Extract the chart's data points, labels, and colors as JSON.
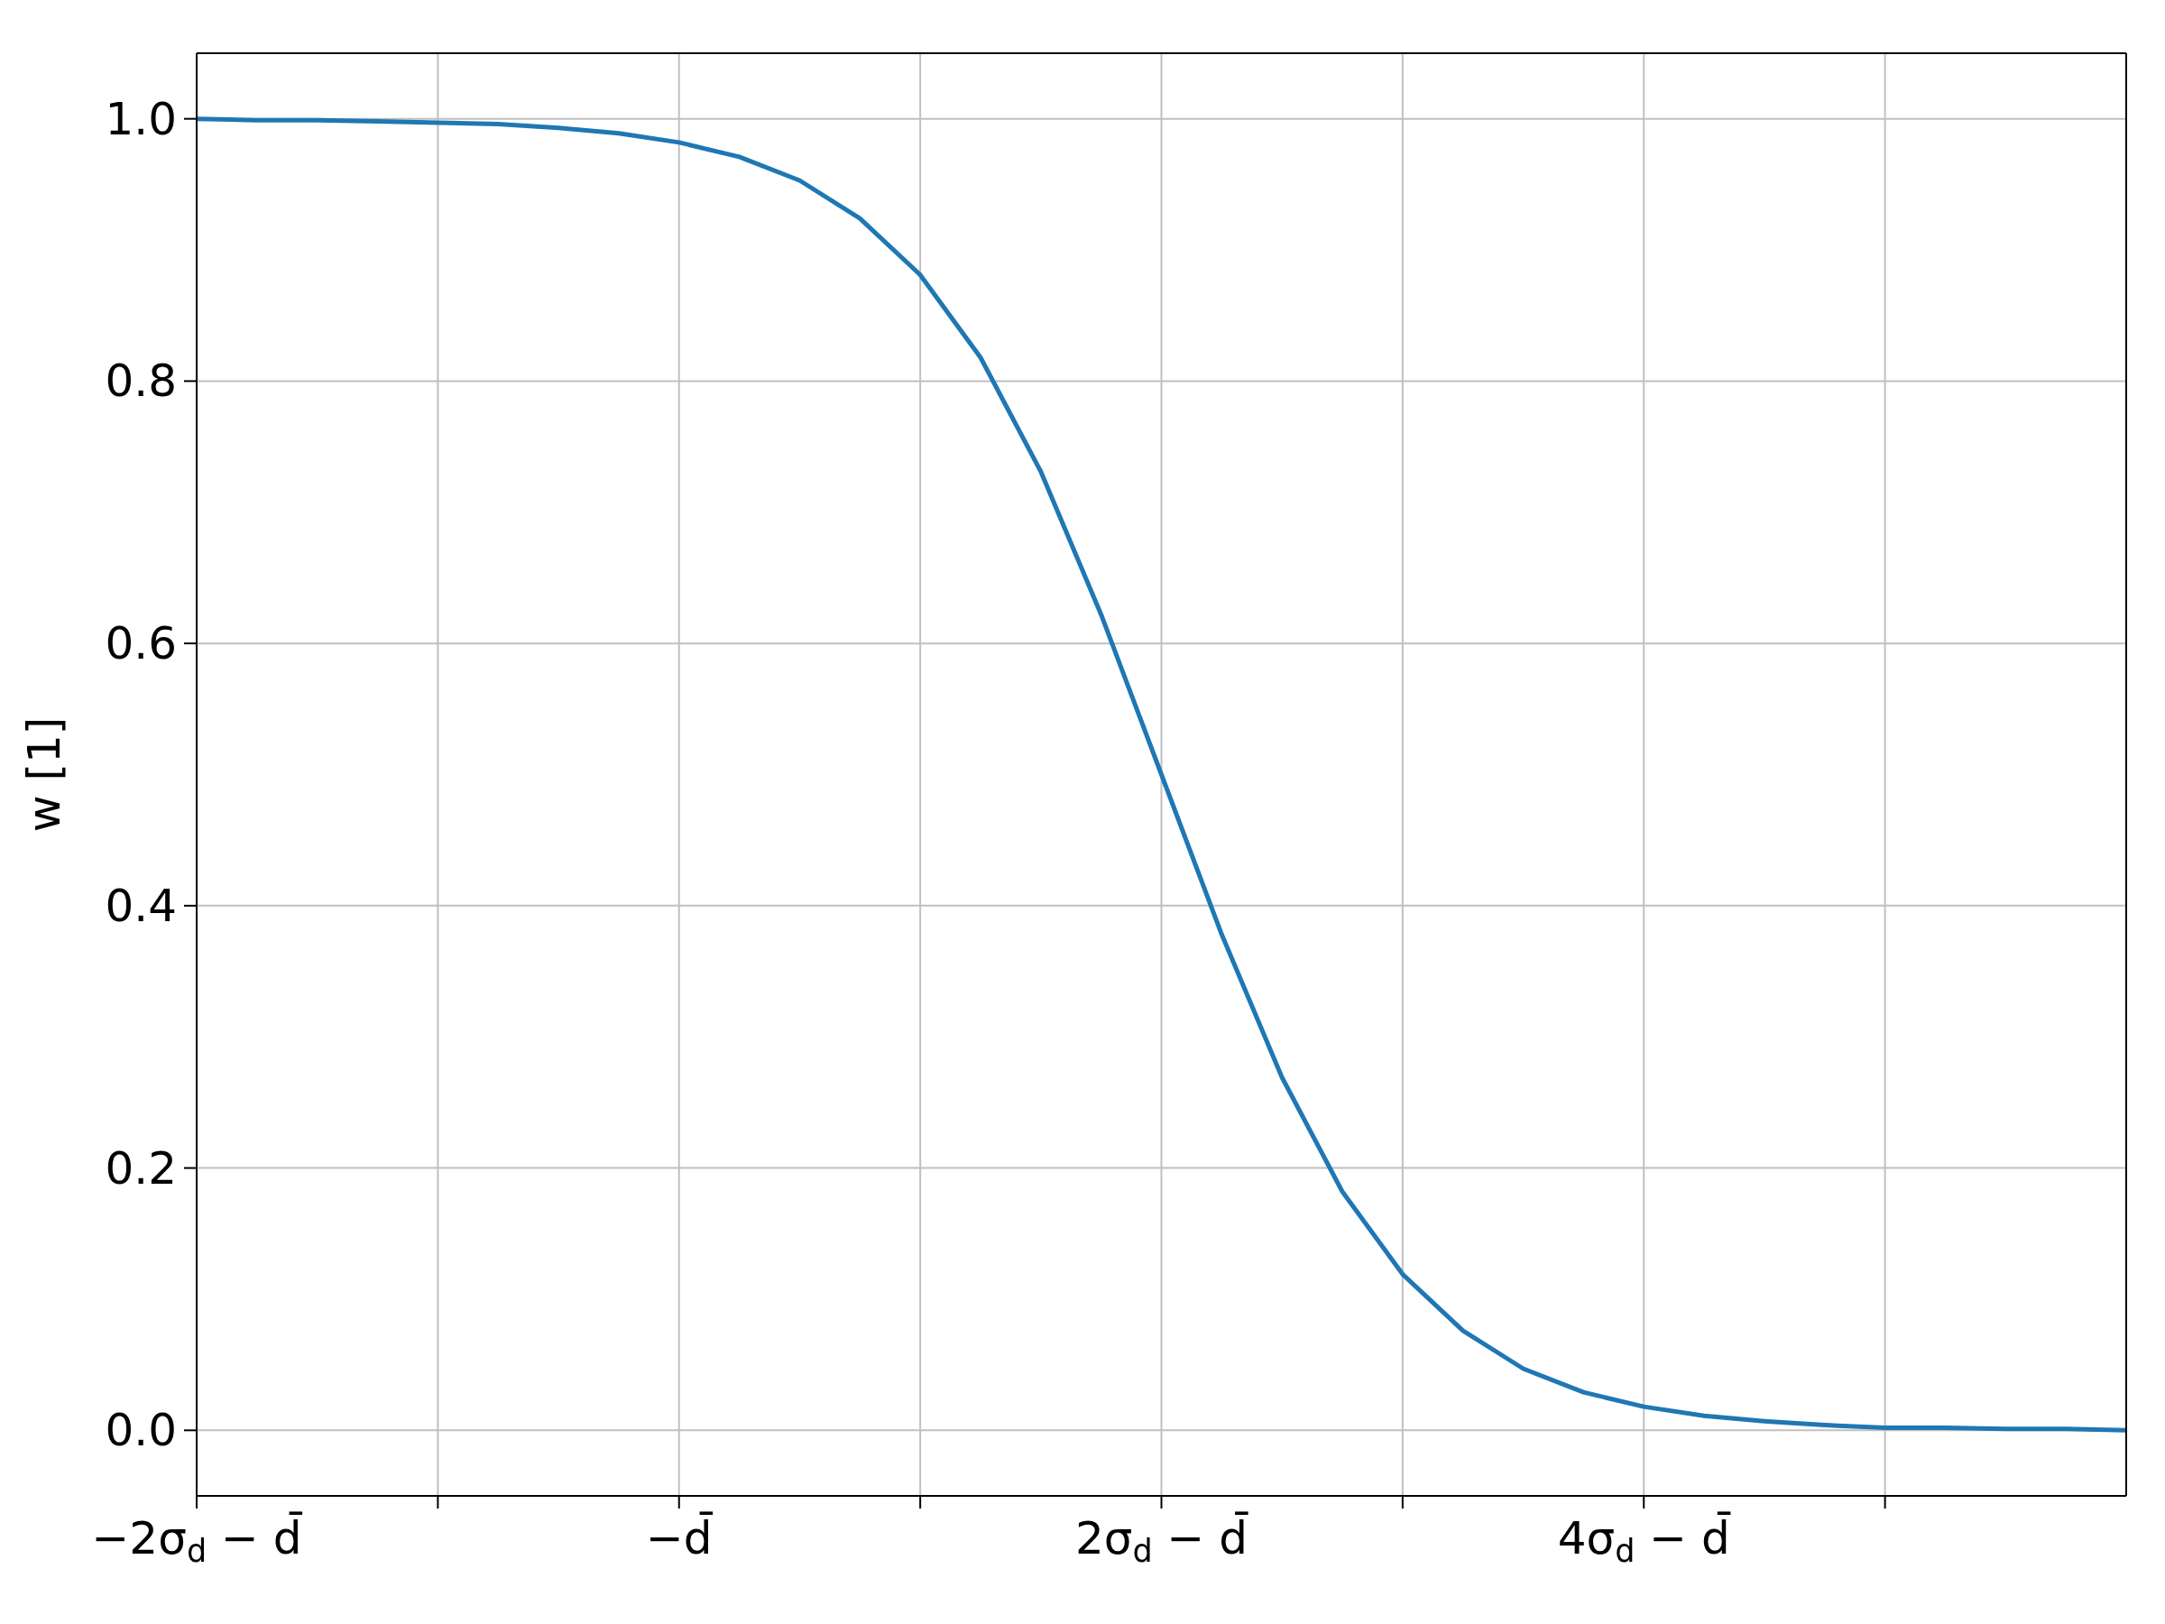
{
  "chart_data": {
    "type": "line",
    "ylabel": "w [1]",
    "x": [
      -2,
      -1.75,
      -1.5,
      -1.25,
      -1,
      -0.75,
      -0.5,
      -0.25,
      0,
      0.25,
      0.5,
      0.75,
      1,
      1.25,
      1.5,
      1.75,
      2,
      2.25,
      2.5,
      2.75,
      3,
      3.25,
      3.5,
      3.75,
      4,
      4.25,
      4.5,
      4.75,
      5,
      5.25,
      5.5,
      5.75,
      6
    ],
    "series": [
      {
        "color": "#1f77b4",
        "values": [
          1.0,
          0.999,
          0.999,
          0.998,
          0.997,
          0.996,
          0.993,
          0.989,
          0.982,
          0.971,
          0.953,
          0.924,
          0.881,
          0.818,
          0.731,
          0.622,
          0.5,
          0.378,
          0.269,
          0.182,
          0.119,
          0.076,
          0.047,
          0.029,
          0.018,
          0.011,
          0.007,
          0.004,
          0.002,
          0.002,
          0.001,
          0.001,
          0.0
        ]
      }
    ],
    "xlim": [
      -2,
      6
    ],
    "xticks": [
      {
        "value": -2,
        "label": "−2σ$_{d}$ − d̄"
      },
      {
        "value": -1,
        "label": null
      },
      {
        "value": 0,
        "label": "−d̄"
      },
      {
        "value": 1,
        "label": null
      },
      {
        "value": 2,
        "label": "2σ$_{d}$ − d̄"
      },
      {
        "value": 3,
        "label": null
      },
      {
        "value": 4,
        "label": "4σ$_{d}$ − d̄"
      },
      {
        "value": 5,
        "label": null
      }
    ],
    "ylim": [
      -0.05,
      1.05
    ],
    "yticks": [
      {
        "value": 0,
        "label": "0.0"
      },
      {
        "value": 0.2,
        "label": "0.2"
      },
      {
        "value": 0.4,
        "label": "0.4"
      },
      {
        "value": 0.6,
        "label": "0.6"
      },
      {
        "value": 0.8,
        "label": "0.8"
      },
      {
        "value": 1,
        "label": "1.0"
      }
    ],
    "grid": true,
    "legend": false,
    "marker": "none",
    "line_style": "solid"
  }
}
